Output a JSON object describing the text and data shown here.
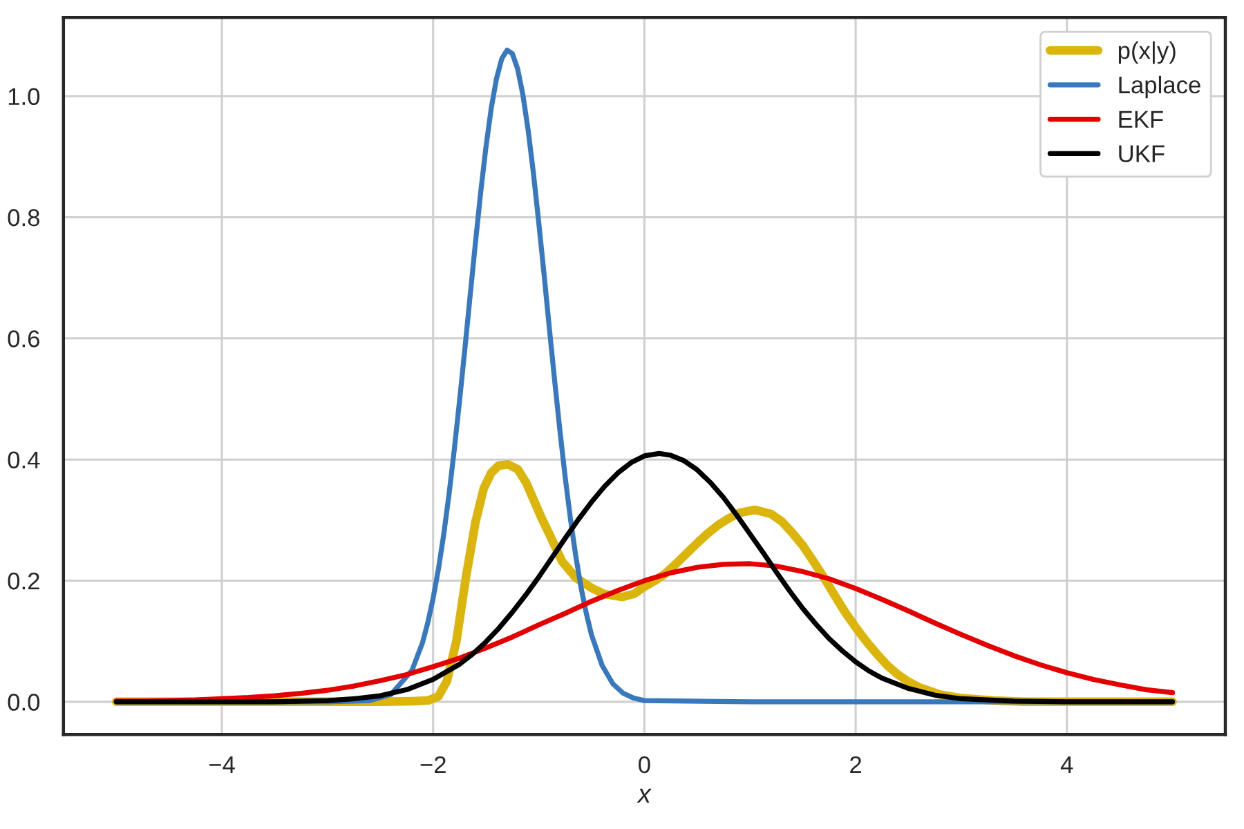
{
  "chart_data": {
    "type": "line",
    "xlabel": "x",
    "xlim": [
      -5.5,
      5.5
    ],
    "ylim": [
      -0.054,
      1.13
    ],
    "xticks": [
      {
        "value": -4,
        "label": "−4"
      },
      {
        "value": -2,
        "label": "−2"
      },
      0,
      2,
      4
    ],
    "yticks": [
      {
        "value": 0,
        "label": "0.0"
      },
      {
        "value": 0.2,
        "label": "0.2"
      },
      {
        "value": 0.4,
        "label": "0.4"
      },
      {
        "value": 0.6,
        "label": "0.6"
      },
      {
        "value": 0.8,
        "label": "0.8"
      },
      {
        "value": 1,
        "label": "1.0"
      }
    ],
    "grid": true,
    "legend": "top right",
    "series": [
      {
        "name": "p(x|y)",
        "color": "#dbb40c",
        "x": [
          -5,
          -4,
          -3,
          -2.5,
          -2.2,
          -2.05,
          -1.95,
          -1.87,
          -1.78,
          -1.69,
          -1.6,
          -1.52,
          -1.45,
          -1.38,
          -1.29,
          -1.2,
          -1.12,
          -1.04,
          -0.97,
          -0.9,
          -0.78,
          -0.65,
          -0.5,
          -0.38,
          -0.21,
          -0.1,
          0,
          0.1,
          0.2,
          0.3,
          0.4,
          0.5,
          0.6,
          0.7,
          0.8,
          0.9,
          1.05,
          1.2,
          1.3,
          1.4,
          1.5,
          1.6,
          1.7,
          1.8,
          1.9,
          2.0,
          2.1,
          2.2,
          2.3,
          2.4,
          2.5,
          2.6,
          2.8,
          3.0,
          3.3,
          3.6,
          4,
          5
        ],
        "values": [
          0,
          0,
          0,
          0,
          0.001,
          0.002,
          0.009,
          0.034,
          0.1,
          0.205,
          0.296,
          0.353,
          0.378,
          0.39,
          0.392,
          0.384,
          0.362,
          0.33,
          0.302,
          0.277,
          0.232,
          0.205,
          0.188,
          0.178,
          0.173,
          0.178,
          0.19,
          0.2,
          0.212,
          0.228,
          0.245,
          0.262,
          0.278,
          0.292,
          0.303,
          0.312,
          0.317,
          0.31,
          0.298,
          0.279,
          0.258,
          0.232,
          0.205,
          0.176,
          0.148,
          0.123,
          0.1,
          0.079,
          0.06,
          0.045,
          0.033,
          0.024,
          0.012,
          0.006,
          0.002,
          0,
          0,
          0
        ]
      },
      {
        "name": "Laplace",
        "color": "#3778bf",
        "x": [
          -5,
          -4,
          -3,
          -2.6,
          -2.4,
          -2.2,
          -2.1,
          -2.05,
          -2.0,
          -1.95,
          -1.9,
          -1.85,
          -1.8,
          -1.75,
          -1.7,
          -1.65,
          -1.6,
          -1.55,
          -1.5,
          -1.45,
          -1.4,
          -1.35,
          -1.3,
          -1.25,
          -1.2,
          -1.15,
          -1.1,
          -1.05,
          -1.0,
          -0.95,
          -0.9,
          -0.85,
          -0.8,
          -0.75,
          -0.7,
          -0.65,
          -0.6,
          -0.55,
          -0.5,
          -0.4,
          -0.3,
          -0.2,
          -0.1,
          0,
          1,
          2,
          3,
          4,
          5
        ],
        "values": [
          0,
          0,
          0,
          0.002,
          0.012,
          0.052,
          0.098,
          0.131,
          0.171,
          0.219,
          0.276,
          0.342,
          0.416,
          0.497,
          0.582,
          0.67,
          0.757,
          0.841,
          0.916,
          0.98,
          1.029,
          1.062,
          1.076,
          1.07,
          1.045,
          1.002,
          0.943,
          0.872,
          0.791,
          0.706,
          0.617,
          0.531,
          0.448,
          0.371,
          0.302,
          0.241,
          0.189,
          0.146,
          0.11,
          0.06,
          0.03,
          0.014,
          0.006,
          0.002,
          0,
          0,
          0,
          0,
          0
        ]
      },
      {
        "name": "EKF",
        "color": "#e50000",
        "x": [
          -5,
          -4.75,
          -4.5,
          -4.25,
          -4,
          -3.75,
          -3.5,
          -3.25,
          -3,
          -2.75,
          -2.5,
          -2.25,
          -2,
          -1.75,
          -1.5,
          -1.25,
          -1,
          -0.75,
          -0.5,
          -0.25,
          0,
          0.25,
          0.5,
          0.75,
          1,
          1.25,
          1.5,
          1.75,
          2,
          2.25,
          2.5,
          2.75,
          3,
          3.25,
          3.5,
          3.75,
          4,
          4.25,
          4.5,
          4.75,
          5
        ],
        "values": [
          0.001,
          0.001,
          0.002,
          0.003,
          0.005,
          0.007,
          0.01,
          0.014,
          0.019,
          0.026,
          0.035,
          0.045,
          0.058,
          0.072,
          0.089,
          0.107,
          0.127,
          0.146,
          0.166,
          0.184,
          0.2,
          0.213,
          0.222,
          0.227,
          0.228,
          0.224,
          0.215,
          0.203,
          0.187,
          0.169,
          0.15,
          0.13,
          0.111,
          0.093,
          0.076,
          0.061,
          0.048,
          0.037,
          0.028,
          0.02,
          0.015
        ]
      },
      {
        "name": "UKF",
        "color": "#000000",
        "x": [
          -5,
          -4,
          -3.5,
          -3,
          -2.75,
          -2.5,
          -2.25,
          -2,
          -1.75,
          -1.625,
          -1.5,
          -1.375,
          -1.25,
          -1.125,
          -1,
          -0.875,
          -0.75,
          -0.625,
          -0.5,
          -0.375,
          -0.25,
          -0.125,
          0,
          0.14,
          0.25,
          0.375,
          0.5,
          0.625,
          0.75,
          0.875,
          1,
          1.125,
          1.25,
          1.375,
          1.5,
          1.625,
          1.75,
          1.875,
          2,
          2.125,
          2.25,
          2.5,
          2.75,
          3,
          3.5,
          4,
          5
        ],
        "values": [
          0,
          0,
          0,
          0.002,
          0.005,
          0.01,
          0.02,
          0.037,
          0.062,
          0.079,
          0.099,
          0.122,
          0.148,
          0.176,
          0.206,
          0.238,
          0.27,
          0.301,
          0.33,
          0.356,
          0.378,
          0.395,
          0.406,
          0.41,
          0.407,
          0.398,
          0.383,
          0.362,
          0.337,
          0.308,
          0.277,
          0.246,
          0.214,
          0.183,
          0.154,
          0.128,
          0.104,
          0.084,
          0.066,
          0.051,
          0.039,
          0.022,
          0.011,
          0.005,
          0.001,
          0,
          0
        ]
      }
    ]
  }
}
